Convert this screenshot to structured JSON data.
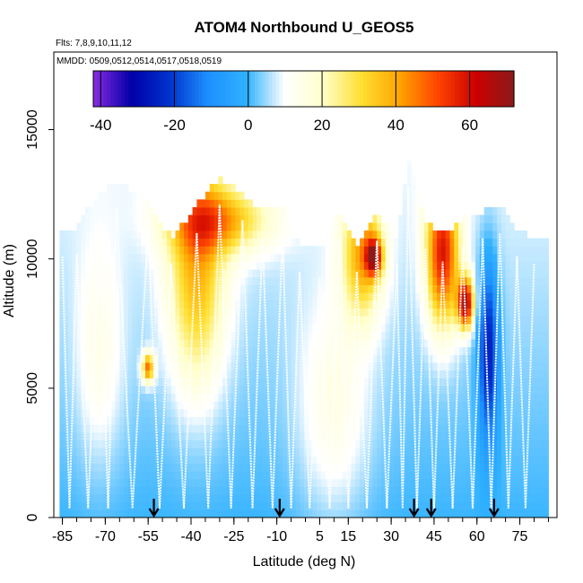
{
  "chart_data": {
    "type": "heatmap",
    "title": "ATOM4 Northbound U_GEOS5",
    "flights_label": "Flts: 7,8,9,10,11,12",
    "dates_label": "MMDD: 0509,0512,0514,0517,0518,0519",
    "xlabel": "Latitude (deg N)",
    "ylabel": "Altitude (m)",
    "xlim": [
      -88,
      88
    ],
    "ylim": [
      0,
      18000
    ],
    "x_ticks": [
      -85,
      -70,
      -55,
      -40,
      -25,
      -10,
      5,
      15,
      30,
      45,
      60,
      75
    ],
    "x_tick_labels": [
      "-85",
      "-70",
      "-55",
      "-40",
      "-25",
      "-10",
      "5",
      "15",
      "30",
      "45",
      "60",
      "75"
    ],
    "x_minor_step": 5,
    "y_ticks": [
      0,
      5000,
      10000,
      15000
    ],
    "y_tick_labels": [
      "0",
      "5000",
      "10000",
      "15000"
    ],
    "colorbar": {
      "min": -42,
      "max": 72,
      "ticks": [
        -40,
        -20,
        0,
        20,
        40,
        60
      ],
      "tick_labels": [
        "-40",
        "-20",
        "0",
        "20",
        "40",
        "60"
      ],
      "colors": [
        "#8a2be2",
        "#0000a8",
        "#0033cc",
        "#1e90ff",
        "#2fb1ff",
        "#ffffff",
        "#ffffcc",
        "#ffe033",
        "#ffa500",
        "#ff4500",
        "#cc0000",
        "#8b1a1a"
      ]
    },
    "arrow_latitudes": [
      -53,
      -9,
      38,
      44,
      66
    ],
    "profile_tops_m": [
      [
        -85,
        10100
      ],
      [
        -80,
        10200
      ],
      [
        -72,
        11500
      ],
      [
        -66,
        12000
      ],
      [
        -55,
        11200
      ],
      [
        -47,
        9800
      ],
      [
        -38,
        11000
      ],
      [
        -30,
        12100
      ],
      [
        -22,
        11500
      ],
      [
        -15,
        10800
      ],
      [
        -8,
        11000
      ],
      [
        -2,
        9500
      ],
      [
        5,
        9300
      ],
      [
        12,
        10800
      ],
      [
        18,
        9500
      ],
      [
        25,
        10700
      ],
      [
        32,
        9800
      ],
      [
        36,
        12800
      ],
      [
        42,
        10400
      ],
      [
        48,
        9900
      ],
      [
        55,
        10500
      ],
      [
        62,
        10800
      ],
      [
        68,
        11000
      ],
      [
        74,
        10100
      ],
      [
        80,
        9800
      ]
    ],
    "wind_field": {
      "background_ms": 0,
      "blobs": [
        {
          "lat": -38,
          "alt": 9500,
          "value": 32,
          "lat_spread": 7,
          "alt_spread": 3200
        },
        {
          "lat": -55,
          "alt": 5800,
          "value": 42,
          "lat_spread": 1.5,
          "alt_spread": 400
        },
        {
          "lat": -30,
          "alt": 11500,
          "value": 30,
          "lat_spread": 12,
          "alt_spread": 900
        },
        {
          "lat": 20,
          "alt": 10200,
          "value": 34,
          "lat_spread": 5,
          "alt_spread": 1800
        },
        {
          "lat": 24,
          "alt": 10100,
          "value": 48,
          "lat_spread": 2,
          "alt_spread": 500
        },
        {
          "lat": 48,
          "alt": 10200,
          "value": 52,
          "lat_spread": 4,
          "alt_spread": 2000
        },
        {
          "lat": 56,
          "alt": 8300,
          "value": 62,
          "lat_spread": 2,
          "alt_spread": 700
        },
        {
          "lat": 64,
          "alt": 6500,
          "value": -30,
          "lat_spread": 2.5,
          "alt_spread": 2500
        },
        {
          "lat": 10,
          "alt": 4000,
          "value": 12,
          "lat_spread": 9,
          "alt_spread": 3000
        },
        {
          "lat": -72,
          "alt": 6000,
          "value": 10,
          "lat_spread": 6,
          "alt_spread": 3000
        }
      ]
    }
  }
}
